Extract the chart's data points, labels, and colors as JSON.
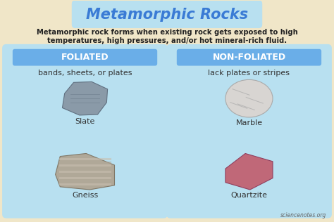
{
  "title": "Metamorphic Rocks",
  "title_color": "#3a7bd5",
  "subtitle_line1": "Metamorphic rock forms when existing rock gets exposed to high",
  "subtitle_line2": "temperatures, high pressures, and/or hot mineral-rich fluid.",
  "subtitle_color": "#222222",
  "background_color": "#f0e6c8",
  "panel_color": "#b8e0f0",
  "foliated_label": "FOLIATED",
  "non_foliated_label": "NON-FOLIATED",
  "label_bg": "#6aaee8",
  "label_text_color": "#ffffff",
  "foliated_desc": "bands, sheets, or plates",
  "non_foliated_desc": "lack plates or stripes",
  "desc_color": "#333333",
  "rocks_left": [
    "Slate",
    "Gneiss"
  ],
  "rocks_right": [
    "Marble",
    "Quartzite"
  ],
  "slate_color": "#8a9aa8",
  "slate_edge": "#607080",
  "gneiss_color1": "#b0a898",
  "gneiss_color2": "#c8bfb0",
  "gneiss_edge": "#807868",
  "marble_color": "#d8d5d2",
  "marble_edge": "#aaaaaa",
  "quartzite_color": "#c06878",
  "quartzite_edge": "#904060",
  "watermark": "sciencenotes.org",
  "watermark_color": "#666666"
}
